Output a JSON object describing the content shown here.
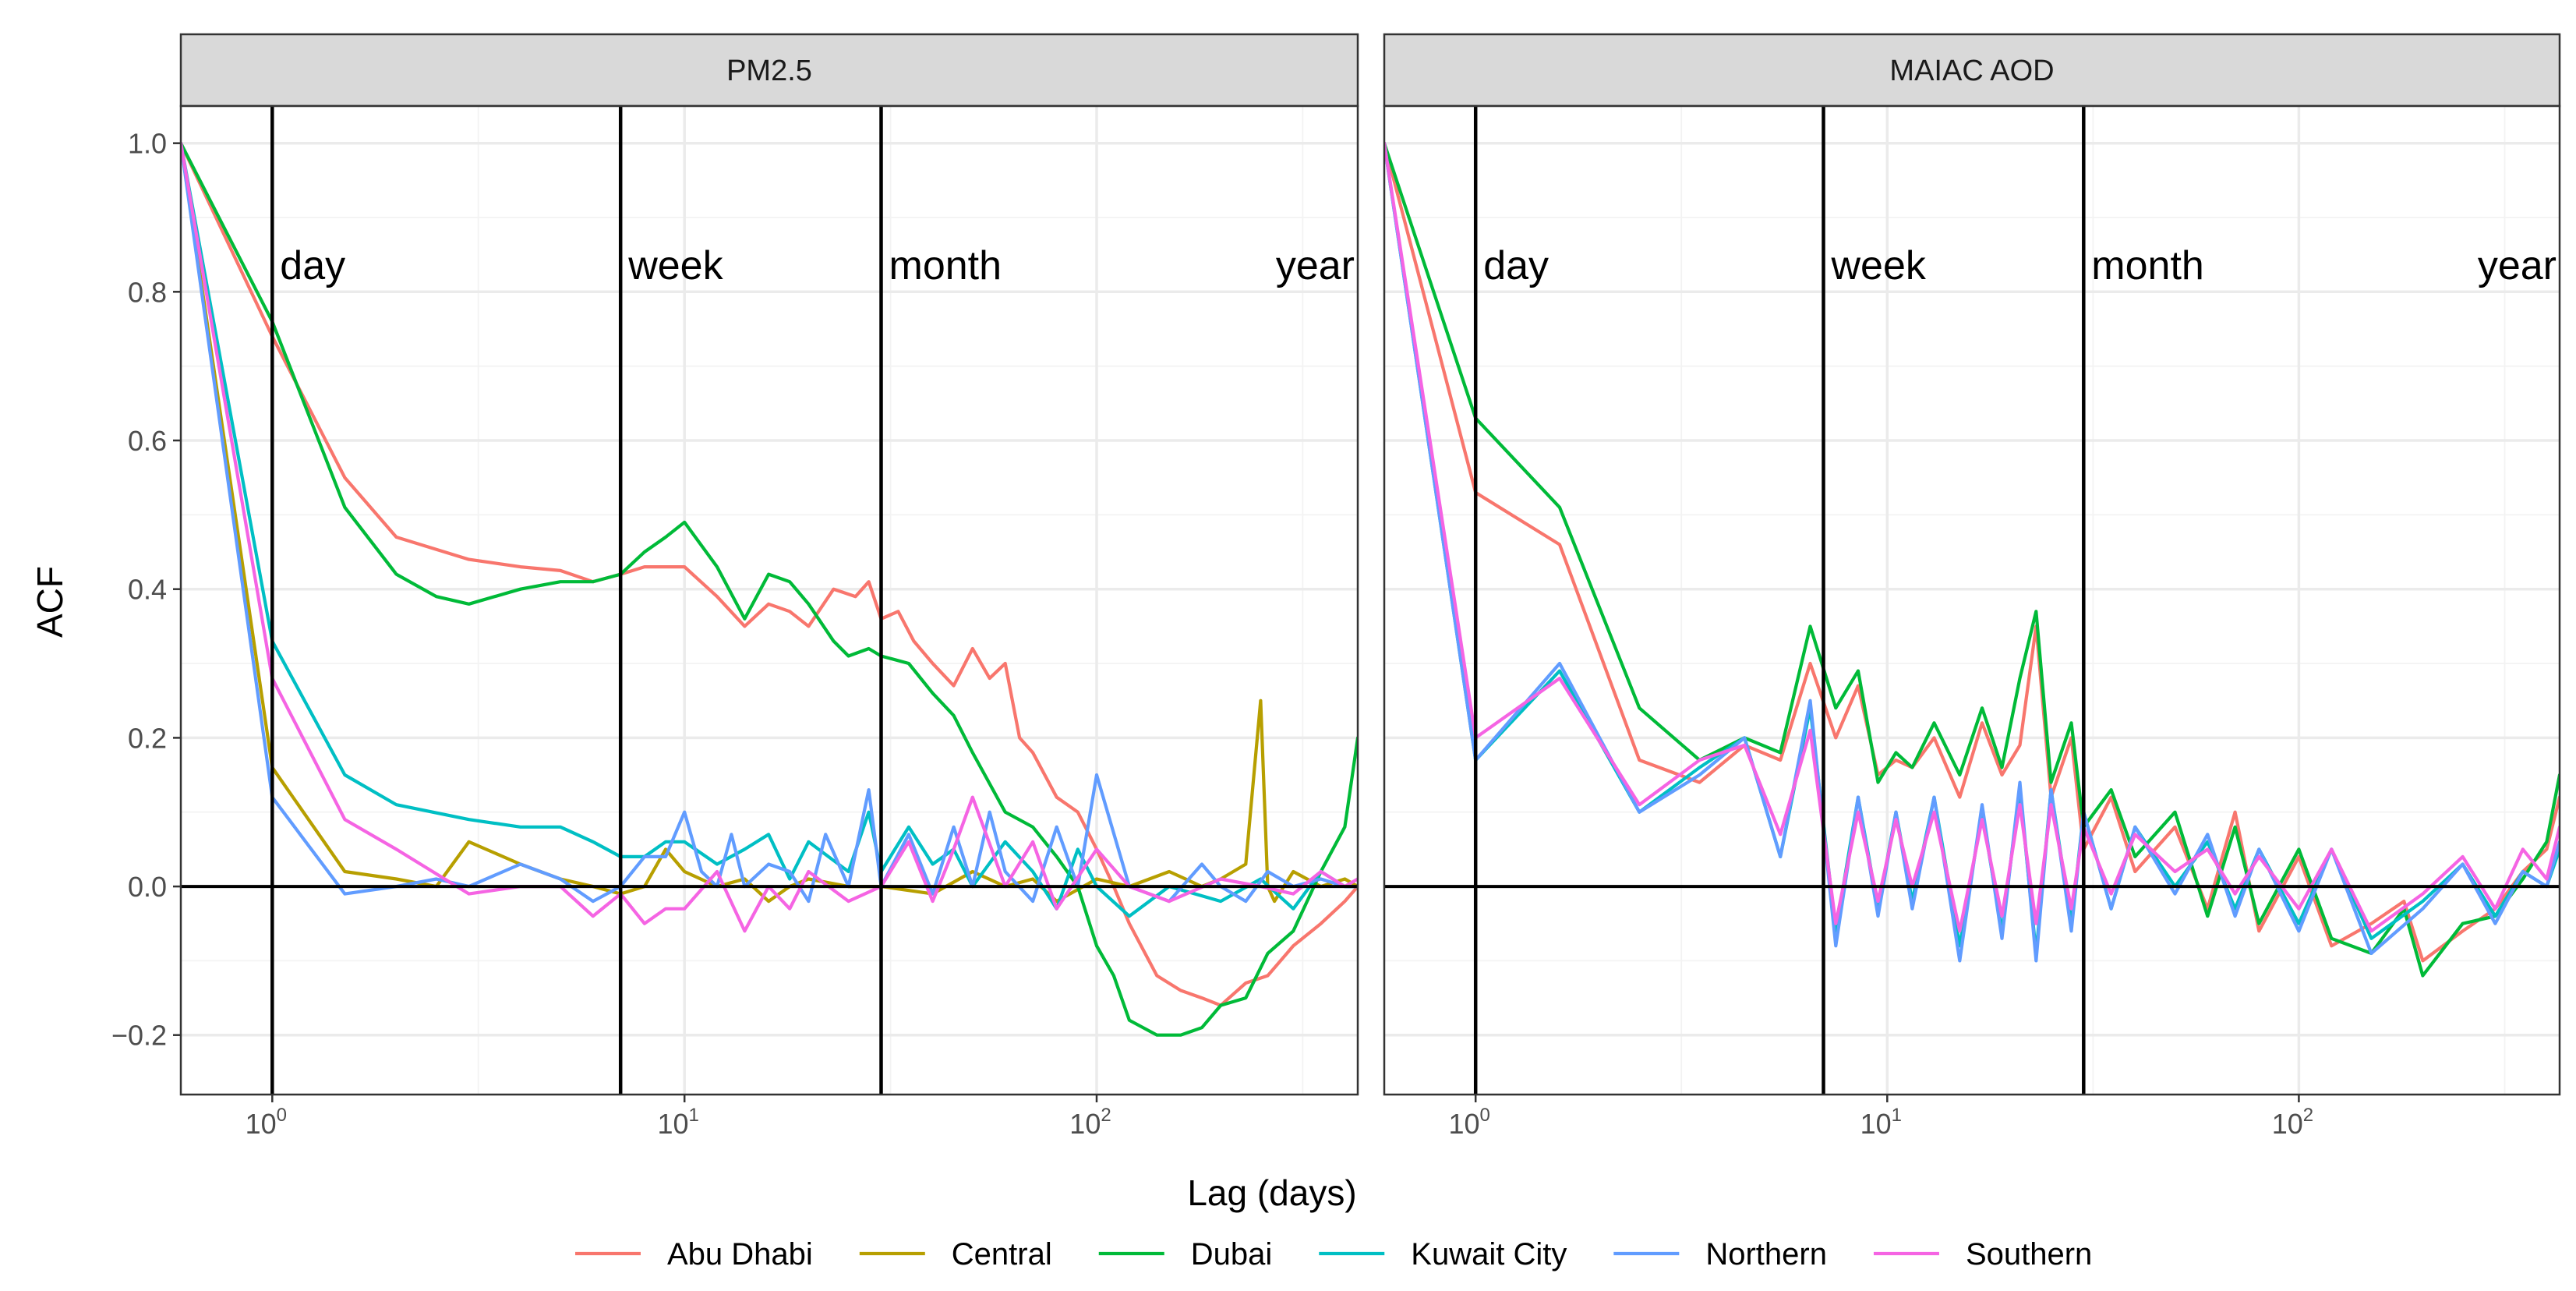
{
  "chart_data": [
    {
      "type": "line",
      "title": "PM2.5",
      "xlabel": "Lag (days)",
      "ylabel": "ACF",
      "xscale": "log10",
      "xlim": [
        0.6,
        430
      ],
      "ylim": [
        -0.28,
        1.05
      ],
      "x_ticks": [
        1,
        10,
        100
      ],
      "x_tick_labels": [
        "10",
        "10",
        "10"
      ],
      "x_tick_exponents": [
        "0",
        "1",
        "2"
      ],
      "y_ticks": [
        -0.2,
        0.0,
        0.2,
        0.4,
        0.6,
        0.8,
        1.0
      ],
      "y_tick_labels": [
        "−0.2",
        "0.0",
        "0.2",
        "0.4",
        "0.6",
        "0.8",
        "1.0"
      ],
      "reference_lines": [
        {
          "x": 1,
          "label": "day"
        },
        {
          "x": 7,
          "label": "week"
        },
        {
          "x": 30,
          "label": "month"
        },
        {
          "x": 365,
          "label": "year"
        }
      ],
      "series": [
        {
          "name": "Abu Dhabi",
          "x": [
            0.6,
            1,
            1.5,
            2,
            3,
            4,
            5,
            6,
            7,
            8,
            9,
            10,
            12,
            14,
            16,
            18,
            20,
            23,
            26,
            28,
            30,
            33,
            36,
            40,
            45,
            50,
            55,
            60,
            65,
            70,
            80,
            90,
            100,
            110,
            120,
            140,
            160,
            180,
            200,
            230,
            260,
            300,
            350,
            400,
            430
          ],
          "y": [
            1.0,
            0.74,
            0.55,
            0.47,
            0.44,
            0.43,
            0.425,
            0.41,
            0.42,
            0.43,
            0.43,
            0.43,
            0.39,
            0.35,
            0.38,
            0.37,
            0.35,
            0.4,
            0.39,
            0.41,
            0.36,
            0.37,
            0.33,
            0.3,
            0.27,
            0.32,
            0.28,
            0.3,
            0.2,
            0.18,
            0.12,
            0.1,
            0.05,
            0.0,
            -0.05,
            -0.12,
            -0.14,
            -0.15,
            -0.16,
            -0.13,
            -0.12,
            -0.08,
            -0.05,
            -0.02,
            0.0
          ]
        },
        {
          "name": "Central",
          "x": [
            0.6,
            1,
            1.5,
            2,
            2.5,
            3,
            4,
            5,
            6,
            7,
            8,
            9,
            10,
            12,
            14,
            16,
            18,
            20,
            25,
            30,
            40,
            50,
            60,
            70,
            80,
            100,
            120,
            150,
            180,
            200,
            230,
            250,
            260,
            270,
            300,
            350,
            400,
            430
          ],
          "y": [
            1.0,
            0.16,
            0.02,
            0.01,
            0.0,
            0.06,
            0.03,
            0.01,
            0.0,
            -0.01,
            0.0,
            0.05,
            0.02,
            0.0,
            0.01,
            -0.02,
            0.0,
            0.01,
            0.0,
            0.0,
            -0.01,
            0.02,
            0.0,
            0.01,
            -0.02,
            0.01,
            0.0,
            0.02,
            0.0,
            0.01,
            0.03,
            0.25,
            0.0,
            -0.02,
            0.02,
            0.0,
            0.01,
            0.0
          ]
        },
        {
          "name": "Dubai",
          "x": [
            0.6,
            1,
            1.5,
            2,
            2.5,
            3,
            4,
            5,
            6,
            7,
            8,
            9,
            10,
            12,
            14,
            16,
            18,
            20,
            23,
            25,
            28,
            30,
            35,
            40,
            45,
            50,
            60,
            70,
            80,
            90,
            100,
            110,
            120,
            140,
            160,
            180,
            200,
            230,
            260,
            300,
            350,
            400,
            430
          ],
          "y": [
            1.0,
            0.76,
            0.51,
            0.42,
            0.39,
            0.38,
            0.4,
            0.41,
            0.41,
            0.42,
            0.45,
            0.47,
            0.49,
            0.43,
            0.36,
            0.42,
            0.41,
            0.38,
            0.33,
            0.31,
            0.32,
            0.31,
            0.3,
            0.26,
            0.23,
            0.18,
            0.1,
            0.08,
            0.04,
            0.0,
            -0.08,
            -0.12,
            -0.18,
            -0.2,
            -0.2,
            -0.19,
            -0.16,
            -0.15,
            -0.09,
            -0.06,
            0.02,
            0.08,
            0.2
          ]
        },
        {
          "name": "Kuwait City",
          "x": [
            0.6,
            1,
            1.5,
            2,
            3,
            4,
            5,
            6,
            7,
            8,
            9,
            10,
            12,
            14,
            16,
            18,
            20,
            25,
            28,
            30,
            35,
            40,
            45,
            50,
            60,
            70,
            80,
            90,
            100,
            120,
            150,
            200,
            250,
            300,
            350,
            400,
            430
          ],
          "y": [
            1.0,
            0.33,
            0.15,
            0.11,
            0.09,
            0.08,
            0.08,
            0.06,
            0.04,
            0.04,
            0.06,
            0.06,
            0.03,
            0.05,
            0.07,
            0.01,
            0.06,
            0.02,
            0.1,
            0.02,
            0.08,
            0.03,
            0.05,
            0.0,
            0.06,
            0.02,
            -0.03,
            0.05,
            0.0,
            -0.04,
            0.0,
            -0.02,
            0.01,
            -0.03,
            0.02,
            0.0,
            0.0
          ]
        },
        {
          "name": "Northern",
          "x": [
            0.6,
            1,
            1.5,
            2,
            2.5,
            3,
            4,
            5,
            6,
            7,
            8,
            9,
            10,
            11,
            12,
            13,
            14,
            16,
            18,
            20,
            22,
            25,
            28,
            30,
            35,
            40,
            45,
            50,
            55,
            60,
            70,
            80,
            90,
            100,
            120,
            150,
            180,
            200,
            230,
            260,
            300,
            350,
            400,
            430
          ],
          "y": [
            1.0,
            0.12,
            -0.01,
            0.0,
            0.01,
            0.0,
            0.03,
            0.01,
            -0.02,
            0.0,
            0.04,
            0.04,
            0.1,
            0.02,
            0.0,
            0.07,
            0.0,
            0.03,
            0.02,
            -0.02,
            0.07,
            0.0,
            0.13,
            0.0,
            0.07,
            -0.01,
            0.08,
            0.0,
            0.1,
            0.02,
            -0.02,
            0.08,
            0.0,
            0.15,
            0.0,
            -0.02,
            0.03,
            0.0,
            -0.02,
            0.02,
            0.0,
            0.01,
            0.0,
            0.0
          ]
        },
        {
          "name": "Southern",
          "x": [
            0.6,
            1,
            1.5,
            2,
            3,
            4,
            5,
            6,
            7,
            8,
            9,
            10,
            12,
            14,
            16,
            18,
            20,
            25,
            30,
            35,
            40,
            45,
            50,
            60,
            70,
            80,
            100,
            120,
            150,
            200,
            250,
            300,
            350,
            400,
            430
          ],
          "y": [
            1.0,
            0.28,
            0.09,
            0.05,
            -0.01,
            0.0,
            0.0,
            -0.04,
            -0.01,
            -0.05,
            -0.03,
            -0.03,
            0.02,
            -0.06,
            0.0,
            -0.03,
            0.02,
            -0.02,
            0.0,
            0.06,
            -0.02,
            0.05,
            0.12,
            0.0,
            0.06,
            -0.03,
            0.05,
            0.0,
            -0.02,
            0.01,
            0.0,
            -0.01,
            0.02,
            0.0,
            0.01
          ]
        }
      ]
    },
    {
      "type": "line",
      "title": "MAIAC AOD",
      "xlabel": "Lag (days)",
      "ylabel": "ACF",
      "xscale": "log10",
      "xlim": [
        0.6,
        430
      ],
      "ylim": [
        -0.28,
        1.05
      ],
      "x_ticks": [
        1,
        10,
        100
      ],
      "x_tick_labels": [
        "10",
        "10",
        "10"
      ],
      "x_tick_exponents": [
        "0",
        "1",
        "2"
      ],
      "reference_lines": [
        {
          "x": 1,
          "label": "day"
        },
        {
          "x": 7,
          "label": "week"
        },
        {
          "x": 30,
          "label": "month"
        },
        {
          "x": 365,
          "label": "year"
        }
      ],
      "series": [
        {
          "name": "Abu Dhabi",
          "x": [
            0.6,
            1,
            1.6,
            2.5,
            3.5,
            4.5,
            5.5,
            6.5,
            7.5,
            8.5,
            9.5,
            10.5,
            11.5,
            13,
            15,
            17,
            19,
            21,
            23,
            25,
            28,
            30,
            35,
            40,
            50,
            60,
            70,
            80,
            100,
            120,
            150,
            180,
            200,
            250,
            300,
            350,
            400,
            430
          ],
          "y": [
            1.0,
            0.53,
            0.46,
            0.17,
            0.14,
            0.19,
            0.17,
            0.3,
            0.2,
            0.27,
            0.15,
            0.17,
            0.16,
            0.2,
            0.12,
            0.22,
            0.15,
            0.19,
            0.35,
            0.12,
            0.2,
            0.05,
            0.12,
            0.02,
            0.08,
            -0.03,
            0.1,
            -0.06,
            0.04,
            -0.08,
            -0.05,
            -0.02,
            -0.1,
            -0.06,
            -0.03,
            0.02,
            0.05,
            0.12
          ]
        },
        {
          "name": "Dubai",
          "x": [
            0.6,
            1,
            1.6,
            2.5,
            3.5,
            4.5,
            5.5,
            6.5,
            7.5,
            8.5,
            9.5,
            10.5,
            11.5,
            13,
            15,
            17,
            19,
            21,
            23,
            25,
            28,
            30,
            35,
            40,
            50,
            60,
            70,
            80,
            100,
            120,
            150,
            180,
            200,
            250,
            300,
            350,
            400,
            430
          ],
          "y": [
            1.0,
            0.63,
            0.51,
            0.24,
            0.17,
            0.2,
            0.18,
            0.35,
            0.24,
            0.29,
            0.14,
            0.18,
            0.16,
            0.22,
            0.15,
            0.24,
            0.16,
            0.28,
            0.37,
            0.14,
            0.22,
            0.08,
            0.13,
            0.04,
            0.1,
            -0.04,
            0.08,
            -0.05,
            0.05,
            -0.07,
            -0.09,
            -0.03,
            -0.12,
            -0.05,
            -0.04,
            0.01,
            0.06,
            0.15
          ]
        },
        {
          "name": "Kuwait City",
          "x": [
            0.6,
            1,
            1.6,
            2.5,
            3.5,
            4.5,
            5.5,
            6.5,
            7.5,
            8.5,
            9.5,
            10.5,
            11.5,
            13,
            15,
            17,
            19,
            21,
            23,
            25,
            28,
            30,
            35,
            40,
            50,
            60,
            70,
            80,
            100,
            120,
            150,
            200,
            250,
            300,
            350,
            400,
            430
          ],
          "y": [
            1.0,
            0.17,
            0.29,
            0.1,
            0.16,
            0.2,
            0.04,
            0.24,
            -0.06,
            0.12,
            -0.03,
            0.1,
            -0.02,
            0.12,
            -0.08,
            0.1,
            -0.06,
            0.13,
            -0.09,
            0.13,
            -0.05,
            0.1,
            -0.03,
            0.08,
            0.0,
            0.06,
            -0.03,
            0.05,
            -0.05,
            0.05,
            -0.07,
            -0.02,
            0.03,
            -0.04,
            0.02,
            0.0,
            0.05
          ]
        },
        {
          "name": "Northern",
          "x": [
            0.6,
            1,
            1.6,
            2.5,
            3.5,
            4.5,
            5.5,
            6.5,
            7.5,
            8.5,
            9.5,
            10.5,
            11.5,
            13,
            15,
            17,
            19,
            21,
            23,
            25,
            28,
            30,
            35,
            40,
            50,
            60,
            70,
            80,
            100,
            120,
            150,
            200,
            250,
            300,
            350,
            400,
            430
          ],
          "y": [
            1.0,
            0.17,
            0.3,
            0.1,
            0.15,
            0.2,
            0.04,
            0.25,
            -0.08,
            0.12,
            -0.04,
            0.1,
            -0.03,
            0.12,
            -0.1,
            0.11,
            -0.07,
            0.14,
            -0.1,
            0.13,
            -0.06,
            0.1,
            -0.03,
            0.08,
            -0.01,
            0.07,
            -0.04,
            0.05,
            -0.06,
            0.05,
            -0.09,
            -0.03,
            0.03,
            -0.05,
            0.02,
            0.0,
            0.06
          ]
        },
        {
          "name": "Southern",
          "x": [
            0.6,
            1,
            1.6,
            2.5,
            3.5,
            4.5,
            5.5,
            6.5,
            7.5,
            8.5,
            9.5,
            10.5,
            11.5,
            13,
            15,
            17,
            19,
            21,
            23,
            25,
            28,
            30,
            35,
            40,
            50,
            60,
            70,
            80,
            100,
            120,
            150,
            200,
            250,
            300,
            350,
            400,
            430
          ],
          "y": [
            1.0,
            0.2,
            0.28,
            0.11,
            0.17,
            0.19,
            0.07,
            0.21,
            -0.05,
            0.1,
            -0.02,
            0.09,
            0.0,
            0.1,
            -0.06,
            0.09,
            -0.04,
            0.11,
            -0.05,
            0.11,
            -0.03,
            0.08,
            -0.01,
            0.07,
            0.02,
            0.05,
            -0.01,
            0.04,
            -0.03,
            0.05,
            -0.06,
            -0.01,
            0.04,
            -0.03,
            0.05,
            0.01,
            0.08
          ]
        }
      ]
    }
  ],
  "axes": {
    "xlabel": "Lag (days)",
    "ylabel": "ACF"
  },
  "legend": {
    "placement": "bottom",
    "items": [
      {
        "name": "Abu Dhabi",
        "color": "#F8766D"
      },
      {
        "name": "Central",
        "color": "#B79F00"
      },
      {
        "name": "Dubai",
        "color": "#00BA38"
      },
      {
        "name": "Kuwait City",
        "color": "#00BFC4"
      },
      {
        "name": "Northern",
        "color": "#619CFF"
      },
      {
        "name": "Southern",
        "color": "#F564E3"
      }
    ]
  }
}
